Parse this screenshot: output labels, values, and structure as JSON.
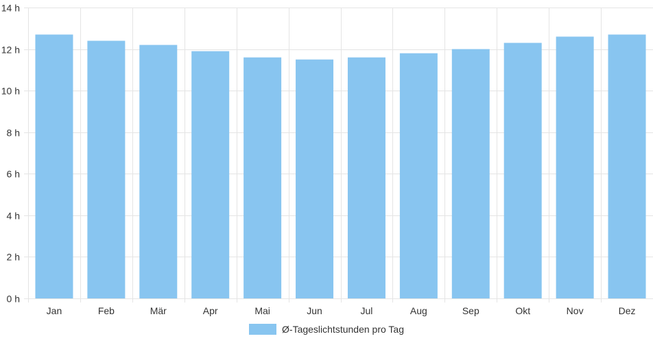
{
  "chart_data": {
    "type": "bar",
    "categories": [
      "Jan",
      "Feb",
      "Mär",
      "Apr",
      "Mai",
      "Jun",
      "Jul",
      "Aug",
      "Sep",
      "Okt",
      "Nov",
      "Dez"
    ],
    "series": [
      {
        "name": "Ø-Tageslichtstunden pro Tag",
        "values": [
          12.7,
          12.4,
          12.2,
          11.9,
          11.6,
          11.5,
          11.6,
          11.8,
          12.0,
          12.3,
          12.6,
          12.7
        ]
      }
    ],
    "title": "",
    "xlabel": "",
    "ylabel": "",
    "ylim": [
      0,
      14
    ],
    "yticks": [
      0,
      2,
      4,
      6,
      8,
      10,
      12,
      14
    ],
    "ytick_suffix": " h",
    "grid": true,
    "legend_position": "bottom",
    "bar_color": "#88c5f0",
    "grid_color": "#e4e4e4"
  }
}
